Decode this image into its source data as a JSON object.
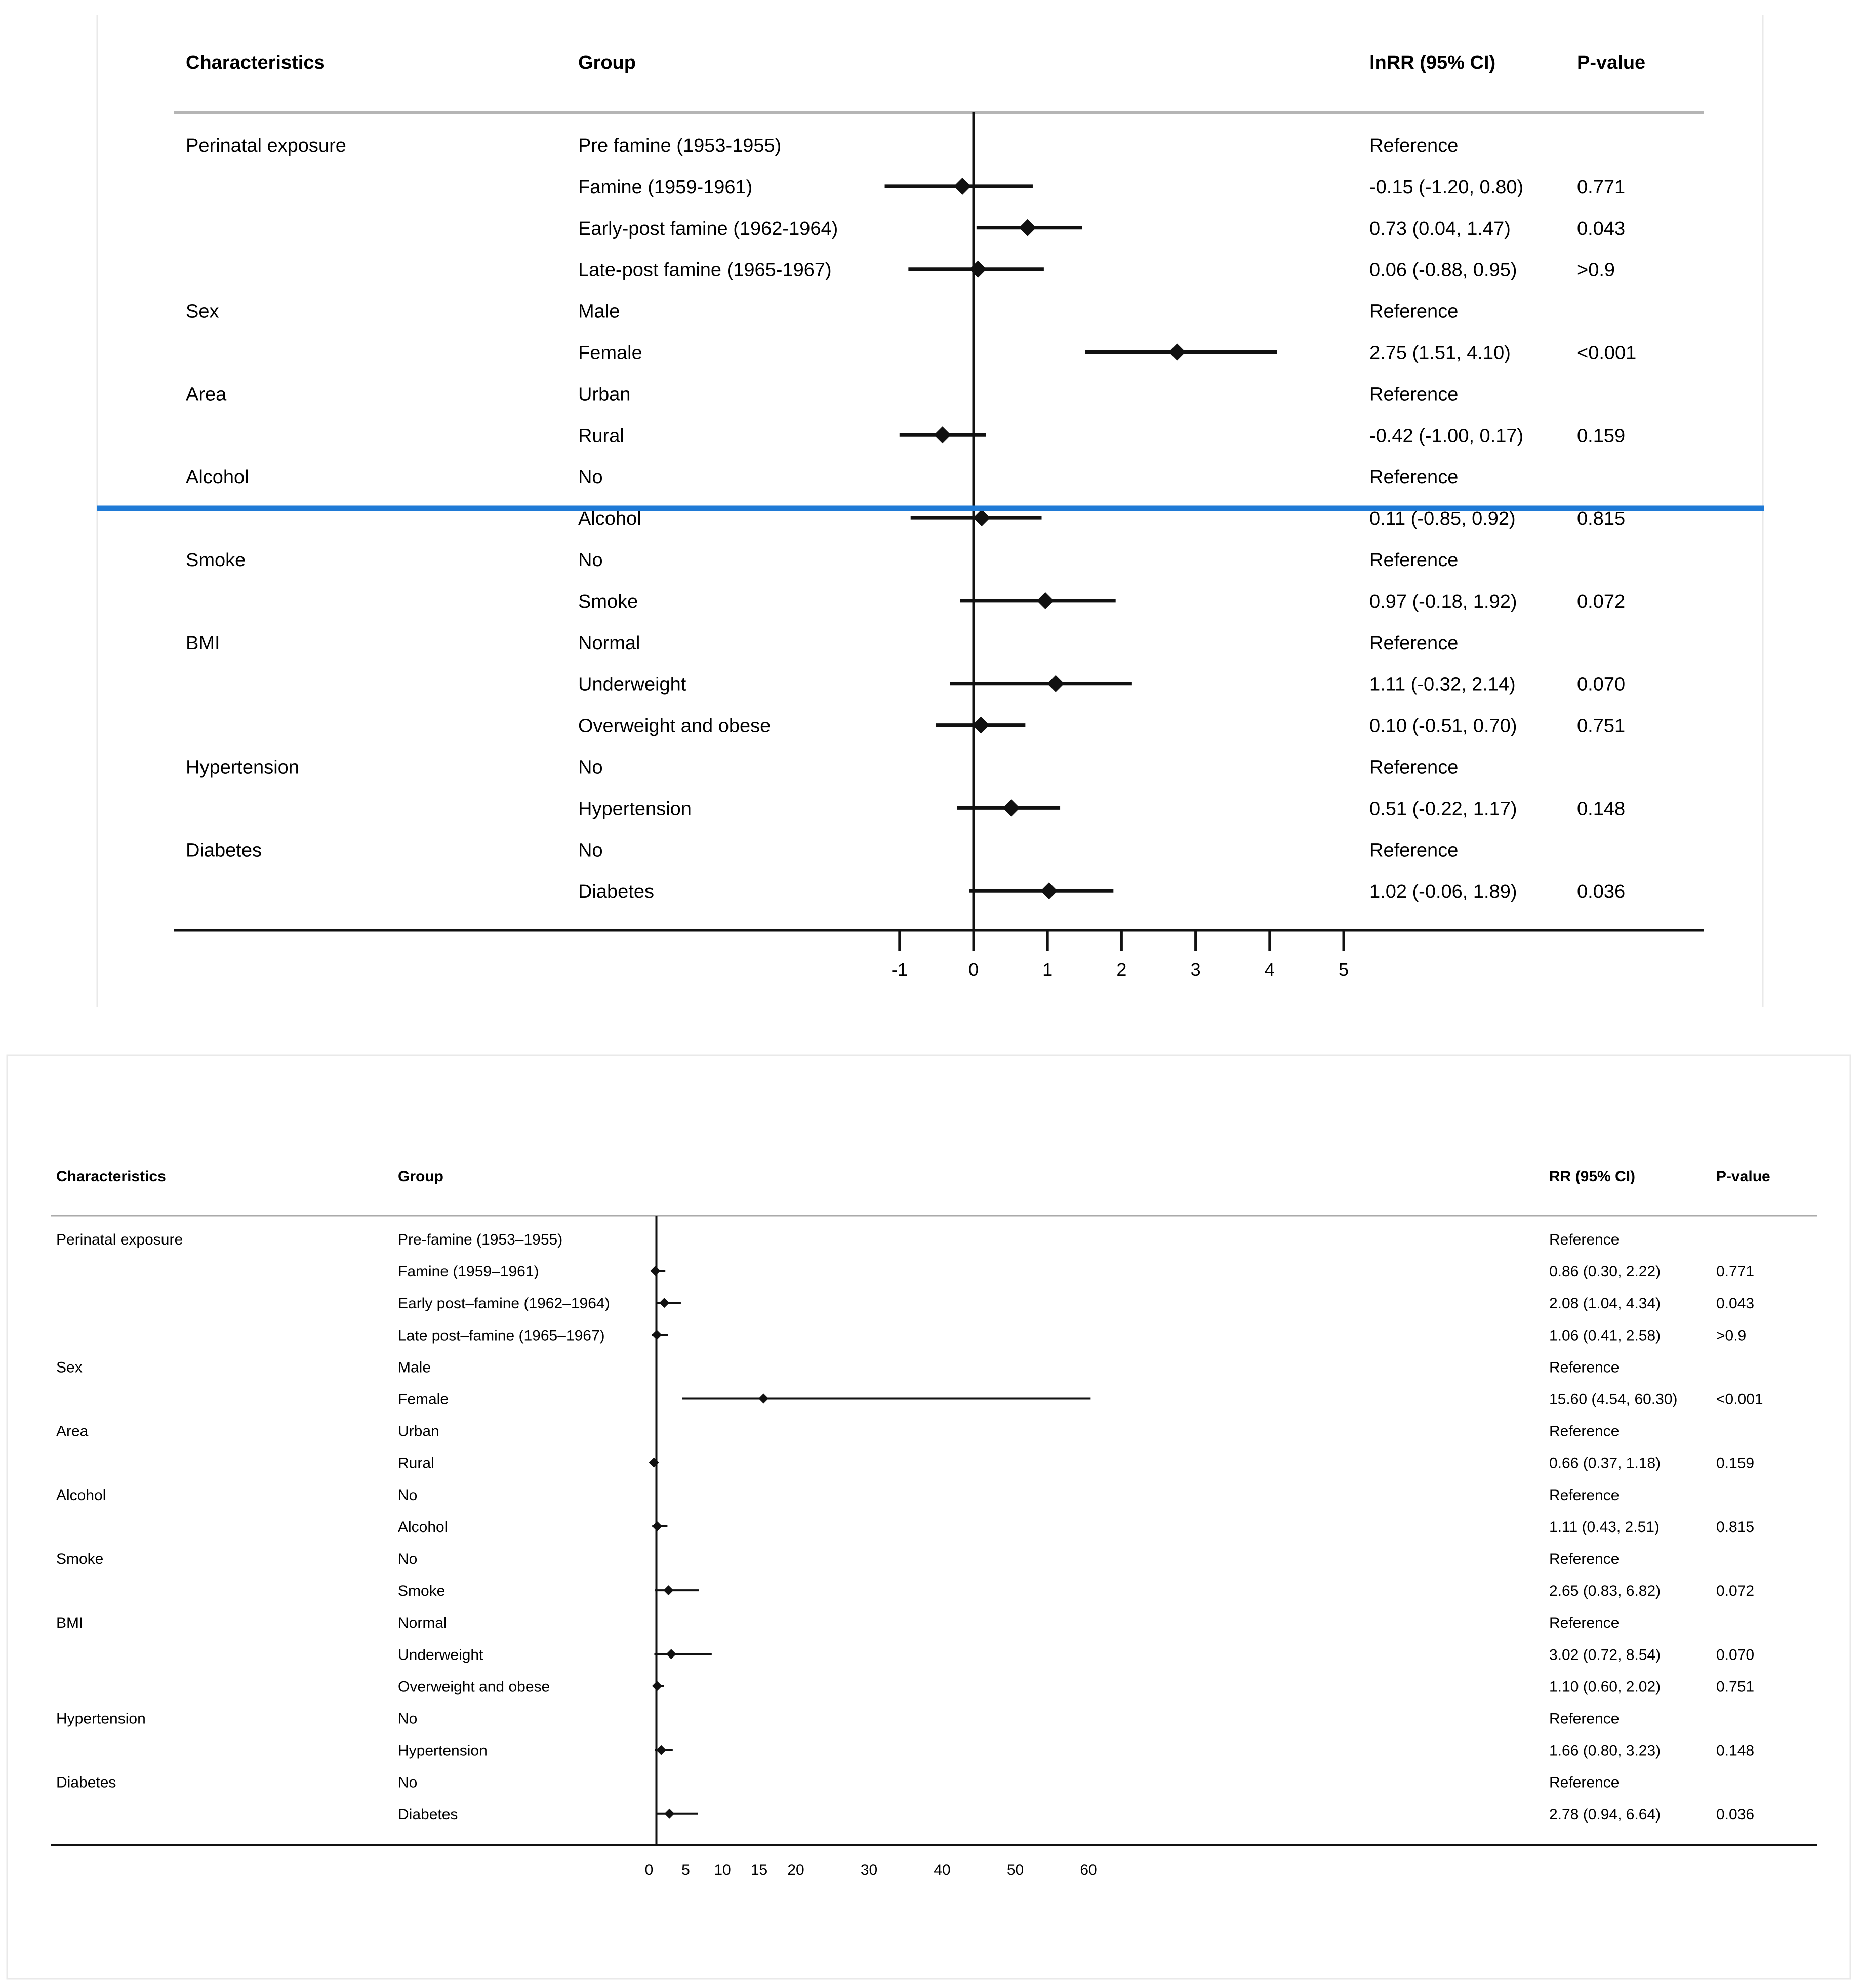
{
  "colors": {
    "ink": "#111111",
    "rule_gray": "#b5b5b5",
    "divider_blue": "#1f7ad6",
    "panel_border": "#e9e9e9"
  },
  "chart_data": [
    {
      "type": "forest",
      "headers": {
        "characteristic": "Characteristics",
        "group": "Group",
        "estimate": "lnRR (95% CI)",
        "p": "P-value"
      },
      "null_value": 0,
      "xlim": [
        -1,
        5
      ],
      "xticks": [
        -1,
        0,
        1,
        2,
        3,
        4,
        5
      ],
      "xtick_labels": [
        "-1",
        "0",
        "1",
        "2",
        "3",
        "4",
        "5"
      ],
      "rows": [
        {
          "characteristic": "Perinatal exposure",
          "group": "Pre famine (1953-1955)",
          "est": null,
          "lo": null,
          "hi": null,
          "estimate_text": "Reference",
          "p": ""
        },
        {
          "characteristic": "",
          "group": "Famine (1959-1961)",
          "est": -0.15,
          "lo": -1.2,
          "hi": 0.8,
          "estimate_text": "-0.15 (-1.20, 0.80)",
          "p": "0.771"
        },
        {
          "characteristic": "",
          "group": "Early-post famine (1962-1964)",
          "est": 0.73,
          "lo": 0.04,
          "hi": 1.47,
          "estimate_text": "0.73 (0.04, 1.47)",
          "p": "0.043"
        },
        {
          "characteristic": "",
          "group": "Late-post famine (1965-1967)",
          "est": 0.06,
          "lo": -0.88,
          "hi": 0.95,
          "estimate_text": "0.06 (-0.88, 0.95)",
          "p": ">0.9"
        },
        {
          "characteristic": "Sex",
          "group": "Male",
          "est": null,
          "lo": null,
          "hi": null,
          "estimate_text": "Reference",
          "p": ""
        },
        {
          "characteristic": "",
          "group": "Female",
          "est": 2.75,
          "lo": 1.51,
          "hi": 4.1,
          "estimate_text": "2.75 (1.51, 4.10)",
          "p": "<0.001"
        },
        {
          "characteristic": "Area",
          "group": "Urban",
          "est": null,
          "lo": null,
          "hi": null,
          "estimate_text": "Reference",
          "p": ""
        },
        {
          "characteristic": "",
          "group": "Rural",
          "est": -0.42,
          "lo": -1.0,
          "hi": 0.17,
          "estimate_text": "-0.42 (-1.00, 0.17)",
          "p": "0.159"
        },
        {
          "characteristic": "Alcohol",
          "group": "No",
          "est": null,
          "lo": null,
          "hi": null,
          "estimate_text": "Reference",
          "p": ""
        },
        {
          "characteristic": "",
          "group": "Alcohol",
          "est": 0.11,
          "lo": -0.85,
          "hi": 0.92,
          "estimate_text": "0.11 (-0.85, 0.92)",
          "p": "0.815"
        },
        {
          "characteristic": "Smoke",
          "group": "No",
          "est": null,
          "lo": null,
          "hi": null,
          "estimate_text": "Reference",
          "p": ""
        },
        {
          "characteristic": "",
          "group": "Smoke",
          "est": 0.97,
          "lo": -0.18,
          "hi": 1.92,
          "estimate_text": "0.97 (-0.18, 1.92)",
          "p": "0.072"
        },
        {
          "characteristic": "BMI",
          "group": "Normal",
          "est": null,
          "lo": null,
          "hi": null,
          "estimate_text": "Reference",
          "p": ""
        },
        {
          "characteristic": "",
          "group": "Underweight",
          "est": 1.11,
          "lo": -0.32,
          "hi": 2.14,
          "estimate_text": "1.11 (-0.32, 2.14)",
          "p": "0.070"
        },
        {
          "characteristic": "",
          "group": "Overweight and obese",
          "est": 0.1,
          "lo": -0.51,
          "hi": 0.7,
          "estimate_text": "0.10 (-0.51, 0.70)",
          "p": "0.751"
        },
        {
          "characteristic": "Hypertension",
          "group": "No",
          "est": null,
          "lo": null,
          "hi": null,
          "estimate_text": "Reference",
          "p": ""
        },
        {
          "characteristic": "",
          "group": "Hypertension",
          "est": 0.51,
          "lo": -0.22,
          "hi": 1.17,
          "estimate_text": "0.51 (-0.22, 1.17)",
          "p": "0.148"
        },
        {
          "characteristic": "Diabetes",
          "group": "No",
          "est": null,
          "lo": null,
          "hi": null,
          "estimate_text": "Reference",
          "p": ""
        },
        {
          "characteristic": "",
          "group": "Diabetes",
          "est": 1.02,
          "lo": -0.06,
          "hi": 1.89,
          "estimate_text": "1.02 (-0.06, 1.89)",
          "p": "0.036"
        }
      ]
    },
    {
      "type": "forest",
      "headers": {
        "characteristic": "Characteristics",
        "group": "Group",
        "estimate": "RR (95% CI)",
        "p": "P-value"
      },
      "null_value": 1,
      "xlim": [
        0,
        60
      ],
      "xticks": [
        0,
        5,
        10,
        15,
        20,
        30,
        40,
        50,
        60
      ],
      "xtick_labels": [
        "0",
        "5",
        "10",
        "15",
        "20",
        "30",
        "40",
        "50",
        "60"
      ],
      "rows": [
        {
          "characteristic": "Perinatal exposure",
          "group": "Pre-famine (1953–1955)",
          "est": null,
          "lo": null,
          "hi": null,
          "estimate_text": "Reference",
          "p": ""
        },
        {
          "characteristic": "",
          "group": "Famine (1959–1961)",
          "est": 0.86,
          "lo": 0.3,
          "hi": 2.22,
          "estimate_text": "0.86 (0.30, 2.22)",
          "p": "0.771"
        },
        {
          "characteristic": "",
          "group": "Early post–famine (1962–1964)",
          "est": 2.08,
          "lo": 1.04,
          "hi": 4.34,
          "estimate_text": "2.08 (1.04, 4.34)",
          "p": "0.043"
        },
        {
          "characteristic": "",
          "group": "Late post–famine (1965–1967)",
          "est": 1.06,
          "lo": 0.41,
          "hi": 2.58,
          "estimate_text": "1.06 (0.41, 2.58)",
          "p": ">0.9"
        },
        {
          "characteristic": "Sex",
          "group": "Male",
          "est": null,
          "lo": null,
          "hi": null,
          "estimate_text": "Reference",
          "p": ""
        },
        {
          "characteristic": "",
          "group": "Female",
          "est": 15.6,
          "lo": 4.54,
          "hi": 60.3,
          "estimate_text": "15.60 (4.54, 60.30)",
          "p": "<0.001"
        },
        {
          "characteristic": "Area",
          "group": "Urban",
          "est": null,
          "lo": null,
          "hi": null,
          "estimate_text": "Reference",
          "p": ""
        },
        {
          "characteristic": "",
          "group": "Rural",
          "est": 0.66,
          "lo": 0.37,
          "hi": 1.18,
          "estimate_text": "0.66 (0.37, 1.18)",
          "p": "0.159"
        },
        {
          "characteristic": "Alcohol",
          "group": "No",
          "est": null,
          "lo": null,
          "hi": null,
          "estimate_text": "Reference",
          "p": ""
        },
        {
          "characteristic": "",
          "group": "Alcohol",
          "est": 1.11,
          "lo": 0.43,
          "hi": 2.51,
          "estimate_text": "1.11 (0.43, 2.51)",
          "p": "0.815"
        },
        {
          "characteristic": "Smoke",
          "group": "No",
          "est": null,
          "lo": null,
          "hi": null,
          "estimate_text": "Reference",
          "p": ""
        },
        {
          "characteristic": "",
          "group": "Smoke",
          "est": 2.65,
          "lo": 0.83,
          "hi": 6.82,
          "estimate_text": "2.65 (0.83, 6.82)",
          "p": "0.072"
        },
        {
          "characteristic": "BMI",
          "group": "Normal",
          "est": null,
          "lo": null,
          "hi": null,
          "estimate_text": "Reference",
          "p": ""
        },
        {
          "characteristic": "",
          "group": "Underweight",
          "est": 3.02,
          "lo": 0.72,
          "hi": 8.54,
          "estimate_text": "3.02 (0.72, 8.54)",
          "p": "0.070"
        },
        {
          "characteristic": "",
          "group": "Overweight and obese",
          "est": 1.1,
          "lo": 0.6,
          "hi": 2.02,
          "estimate_text": "1.10 (0.60, 2.02)",
          "p": "0.751"
        },
        {
          "characteristic": "Hypertension",
          "group": "No",
          "est": null,
          "lo": null,
          "hi": null,
          "estimate_text": "Reference",
          "p": ""
        },
        {
          "characteristic": "",
          "group": "Hypertension",
          "est": 1.66,
          "lo": 0.8,
          "hi": 3.23,
          "estimate_text": "1.66 (0.80, 3.23)",
          "p": "0.148"
        },
        {
          "characteristic": "Diabetes",
          "group": "No",
          "est": null,
          "lo": null,
          "hi": null,
          "estimate_text": "Reference",
          "p": ""
        },
        {
          "characteristic": "",
          "group": "Diabetes",
          "est": 2.78,
          "lo": 0.94,
          "hi": 6.64,
          "estimate_text": "2.78 (0.94, 6.64)",
          "p": "0.036"
        }
      ]
    }
  ]
}
